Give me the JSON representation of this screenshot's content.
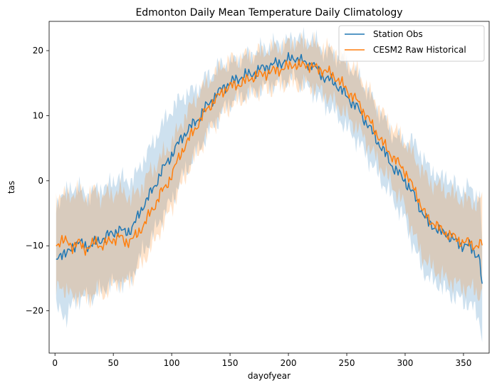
{
  "chart_data": {
    "type": "line",
    "title": "Edmonton Daily Mean Temperature Daily Climatology",
    "xlabel": "dayofyear",
    "ylabel": "tas",
    "xlim": [
      -5,
      372
    ],
    "ylim": [
      -26.5,
      24.5
    ],
    "xticks": [
      0,
      50,
      100,
      150,
      200,
      250,
      300,
      350
    ],
    "yticks": [
      -20,
      -10,
      0,
      10,
      20
    ],
    "grid": false,
    "legend_position": "upper right",
    "series": [
      {
        "name": "Station Obs",
        "color": "#1f77b4",
        "anchors": {
          "x": [
            1,
            5,
            10,
            15,
            20,
            25,
            30,
            35,
            40,
            45,
            50,
            55,
            60,
            65,
            70,
            75,
            80,
            85,
            90,
            95,
            100,
            105,
            110,
            115,
            120,
            125,
            130,
            135,
            140,
            145,
            150,
            160,
            170,
            180,
            190,
            200,
            205,
            210,
            215,
            220,
            230,
            240,
            250,
            260,
            270,
            280,
            290,
            300,
            305,
            310,
            315,
            320,
            325,
            330,
            335,
            340,
            345,
            350,
            355,
            360,
            364,
            366
          ],
          "mean": [
            -12,
            -11,
            -11.5,
            -10,
            -9.5,
            -10,
            -10,
            -9.5,
            -9,
            -8.5,
            -8,
            -7.5,
            -8,
            -7.5,
            -6,
            -4,
            -2.5,
            -1,
            1,
            2.5,
            4,
            5.5,
            7,
            8,
            9,
            10,
            11.5,
            12.5,
            13.5,
            14.5,
            15,
            16,
            16.5,
            17.5,
            18,
            18.5,
            19,
            18.5,
            18,
            18,
            16,
            15,
            13,
            11,
            8,
            5,
            2,
            0,
            -1.5,
            -3,
            -5,
            -6.5,
            -7,
            -8,
            -8,
            -9,
            -9.5,
            -10,
            -10,
            -11,
            -12,
            -17
          ],
          "lower": [
            -20,
            -20,
            -21,
            -19,
            -18,
            -18,
            -18,
            -17.5,
            -17,
            -16,
            -16,
            -15.5,
            -16,
            -15,
            -13,
            -11,
            -9.5,
            -8,
            -6,
            -4.5,
            -3,
            -1,
            1,
            2.5,
            4,
            5.5,
            7,
            8.5,
            9.5,
            11,
            12,
            13,
            13.5,
            14.5,
            15,
            15.5,
            16,
            15,
            14.5,
            14,
            12,
            10.5,
            8,
            6,
            3,
            0,
            -3,
            -6,
            -9,
            -11.5,
            -13.5,
            -15,
            -15.5,
            -16,
            -17,
            -17.5,
            -18,
            -18.5,
            -19,
            -20,
            -21.5,
            -24
          ]
        }
      },
      {
        "name": "CESM2 Raw Historical",
        "color": "#ff7f0e",
        "anchors": {
          "x": [
            1,
            5,
            10,
            15,
            20,
            25,
            30,
            35,
            40,
            45,
            50,
            55,
            60,
            65,
            70,
            75,
            80,
            85,
            90,
            95,
            100,
            105,
            110,
            115,
            120,
            125,
            130,
            135,
            140,
            145,
            150,
            160,
            170,
            180,
            190,
            200,
            205,
            210,
            215,
            220,
            230,
            240,
            250,
            260,
            270,
            280,
            290,
            300,
            305,
            310,
            315,
            320,
            325,
            330,
            335,
            340,
            345,
            350,
            355,
            360,
            364,
            366
          ],
          "mean": [
            -10,
            -9,
            -9.5,
            -10,
            -9.5,
            -10.5,
            -10,
            -9.5,
            -10,
            -9.5,
            -9,
            -8.5,
            -9.5,
            -9,
            -8.5,
            -7,
            -5.5,
            -4,
            -2,
            -1,
            1,
            3,
            5,
            6.5,
            8,
            9.5,
            11,
            12,
            13,
            14,
            14.5,
            15,
            16,
            16.5,
            17,
            17.5,
            18,
            17.5,
            18,
            17.5,
            17,
            16,
            14,
            12,
            9,
            6,
            3.5,
            1.5,
            -0.5,
            -2,
            -4.5,
            -6,
            -6.5,
            -7.5,
            -8,
            -8.5,
            -9,
            -9.5,
            -9.5,
            -10,
            -10,
            -9.5
          ],
          "lower": [
            -17,
            -16,
            -17,
            -18,
            -17.5,
            -18,
            -18,
            -17,
            -17.5,
            -17,
            -16,
            -15.5,
            -16,
            -15,
            -14,
            -12.5,
            -11,
            -9.5,
            -7.5,
            -6,
            -4,
            -2,
            0,
            2,
            3.5,
            5,
            7,
            8.5,
            9.5,
            10.5,
            11.5,
            12.5,
            13.5,
            14,
            14.5,
            15,
            15,
            14.5,
            15,
            14.5,
            13.5,
            12,
            10,
            8,
            5,
            2,
            -1,
            -4,
            -7,
            -9.5,
            -11.5,
            -13,
            -13.5,
            -14.5,
            -15,
            -15.5,
            -16,
            -16.5,
            -16.5,
            -17,
            -17.5,
            -17
          ],
          "upper": [
            -2.5,
            -2,
            -2.5,
            -2,
            -1.5,
            -2.5,
            -2,
            -1.5,
            -2.5,
            -2,
            -2,
            -1.5,
            -2,
            -2.5,
            -2,
            -0.5,
            1,
            2,
            3.5,
            4.5,
            6,
            7.5,
            9.5,
            11,
            12.5,
            14,
            15,
            16,
            17,
            18,
            18.5,
            19,
            19.5,
            20,
            20.5,
            21,
            21.5,
            21,
            21.5,
            21,
            20.5,
            20,
            18.5,
            16.5,
            13.5,
            10.5,
            8,
            6,
            4.5,
            3,
            1.5,
            0,
            -0.5,
            -1,
            -1.5,
            -2,
            -2.5,
            -3,
            -3,
            -3.5,
            -3,
            -2.5
          ]
        }
      }
    ]
  }
}
